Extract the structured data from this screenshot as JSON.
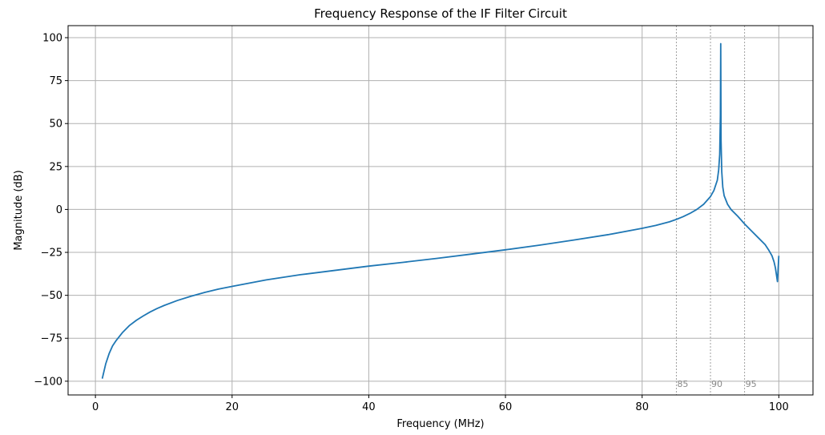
{
  "chart_data": {
    "type": "line",
    "title": "Frequency Response of the IF Filter Circuit",
    "xlabel": "Frequency (MHz)",
    "ylabel": "Magnitude (dB)",
    "xlim": [
      -4,
      105
    ],
    "ylim": [
      -108,
      107
    ],
    "xticks": [
      0,
      20,
      40,
      60,
      80,
      100
    ],
    "yticks": [
      -100,
      -75,
      -50,
      -25,
      0,
      25,
      50,
      75,
      100
    ],
    "xtick_labels": [
      "0",
      "20",
      "40",
      "60",
      "80",
      "100"
    ],
    "ytick_labels": [
      "−100",
      "−75",
      "−50",
      "−25",
      "0",
      "25",
      "50",
      "75",
      "100"
    ],
    "grid": true,
    "colors": {
      "line": "#1f77b4",
      "annotation": "#888888"
    },
    "annotations": [
      {
        "x": 85,
        "label": "85"
      },
      {
        "x": 90,
        "label": "90"
      },
      {
        "x": 95,
        "label": "95"
      }
    ],
    "series": [
      {
        "x": [
          1,
          1.5,
          2,
          2.5,
          3,
          4,
          5,
          6,
          7,
          8,
          9,
          10,
          12,
          14,
          16,
          18,
          20,
          25,
          30,
          35,
          40,
          45,
          50,
          55,
          60,
          65,
          70,
          75,
          80,
          82,
          84,
          85,
          86,
          87,
          88,
          89,
          90,
          90.5,
          91,
          91.2,
          91.35,
          91.45,
          91.5,
          91.55,
          91.65,
          91.8,
          92,
          92.5,
          93,
          94,
          95,
          96,
          97,
          98,
          98.5,
          99,
          99.3,
          99.5,
          99.65,
          99.8,
          100
        ],
        "y": [
          -98.5,
          -90,
          -84,
          -79.5,
          -76.5,
          -71.5,
          -67.5,
          -64.5,
          -62,
          -59.7,
          -57.7,
          -56,
          -53,
          -50.5,
          -48.3,
          -46.4,
          -44.8,
          -41,
          -38,
          -35.5,
          -33,
          -30.8,
          -28.5,
          -26,
          -23.5,
          -20.8,
          -17.8,
          -14.7,
          -11,
          -9.3,
          -7.2,
          -5.8,
          -4.2,
          -2.3,
          0,
          3,
          7.5,
          11,
          17,
          23,
          32,
          55,
          96.5,
          40,
          22,
          13,
          8,
          3,
          0,
          -4,
          -8.5,
          -12.5,
          -16.5,
          -20.5,
          -23.5,
          -27,
          -30.5,
          -34,
          -38,
          -42,
          -27
        ]
      }
    ]
  }
}
